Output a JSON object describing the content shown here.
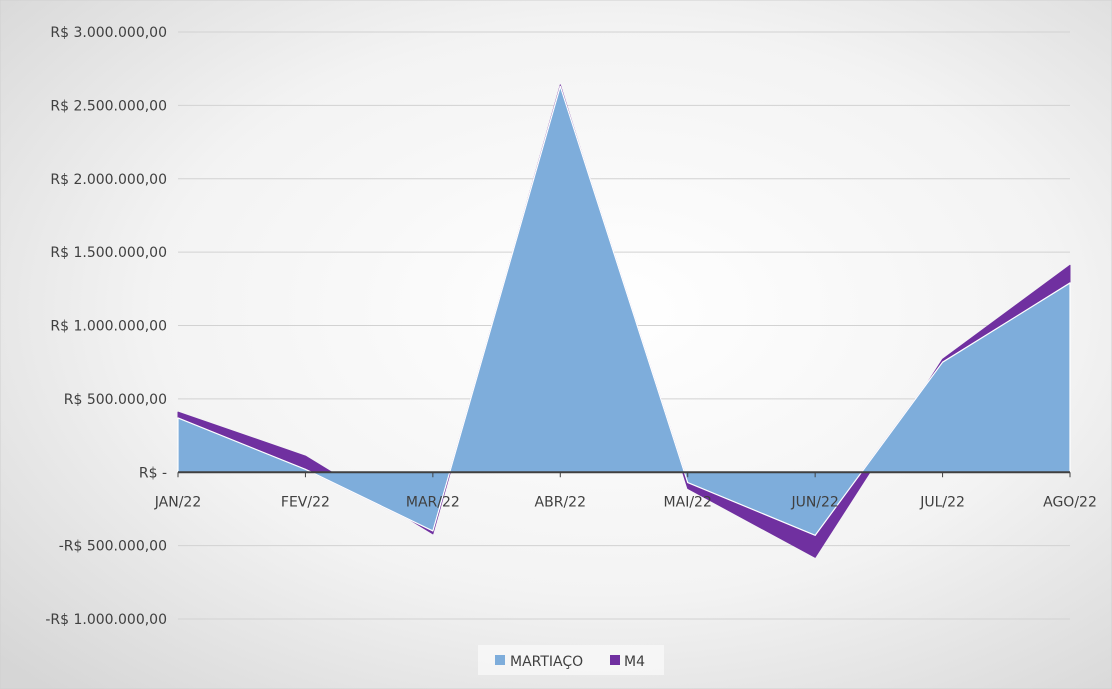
{
  "chart_data": {
    "type": "area",
    "categories": [
      "JAN/22",
      "FEV/22",
      "MAR/22",
      "ABR/22",
      "MAI/22",
      "JUN/22",
      "JUL/22",
      "AGO/22"
    ],
    "series": [
      {
        "name": "MARTIAÇO",
        "color": "#7EADDB",
        "values": [
          370000,
          20000,
          -400000,
          2630000,
          -70000,
          -430000,
          750000,
          1290000
        ]
      },
      {
        "name": "M4",
        "color": "#7030A0",
        "values": [
          40000,
          90000,
          -20000,
          10000,
          -40000,
          -150000,
          20000,
          120000
        ]
      }
    ],
    "y_axis": {
      "min": -1000000,
      "max": 3000000,
      "step": 500000,
      "tick_labels": [
        "R$ 3.000.000,00",
        "R$ 2.500.000,00",
        "R$ 2.000.000,00",
        "R$ 1.500.000,00",
        "R$ 1.000.000,00",
        "R$ 500.000,00",
        "R$ -",
        "-R$ 500.000,00",
        "-R$ 1.000.000,00"
      ]
    },
    "stacked": true,
    "grid": true,
    "legend_position": "bottom"
  }
}
